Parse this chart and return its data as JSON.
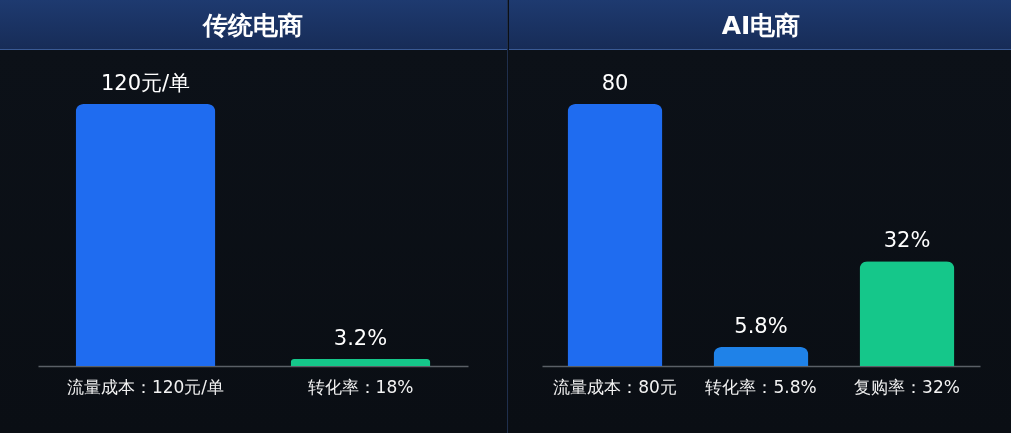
{
  "chart_data": [
    {
      "type": "bar",
      "title": "传统电商",
      "tick_labels": "x",
      "categories": [
        "流量成本：120元/单",
        "转化率：18%"
      ],
      "values": [
        120,
        3.2
      ],
      "value_labels": [
        "120元/单",
        "3.2%"
      ],
      "colors": [
        "#1f6cf0",
        "#15c78a"
      ]
    },
    {
      "type": "bar",
      "title": "AI电商",
      "tick_labels": "x",
      "categories": [
        "流量成本：80元",
        "转化率：5.8%",
        "复购率：32%"
      ],
      "values": [
        80,
        5.8,
        32
      ],
      "value_labels": [
        "80",
        "5.8%",
        "32%"
      ],
      "colors": [
        "#1f6cf0",
        "#1f82e8",
        "#15c78a"
      ]
    }
  ]
}
